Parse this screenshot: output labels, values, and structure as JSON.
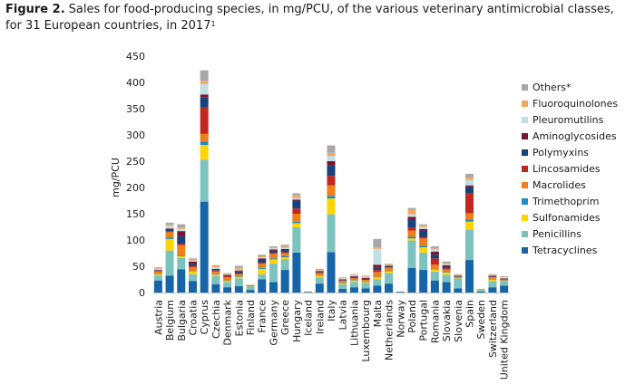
{
  "figure": {
    "number": "Figure 2.",
    "title_line1": "Sales for food-producing species, in mg/PCU, of the various veterinary antimicrobial classes,",
    "title_line2": "for 31 European countries, in 2017",
    "footnote_marker": "1"
  },
  "chart_data": {
    "type": "bar",
    "stacked": true,
    "ylabel": "mg/PCU",
    "xlabel": "",
    "ylim": [
      0,
      450
    ],
    "yticks": [
      0,
      50,
      100,
      150,
      200,
      250,
      300,
      350,
      400,
      450
    ],
    "grid": false,
    "legend_position": "right",
    "categories": [
      "Austria",
      "Belgium",
      "Bulgaria",
      "Croatia",
      "Cyprus",
      "Czechia",
      "Denmark",
      "Estonia",
      "Finland",
      "France",
      "Germany",
      "Greece",
      "Hungary",
      "Iceland",
      "Ireland",
      "Italy",
      "Latvia",
      "Lithuania",
      "Luxembourg",
      "Malta",
      "Netherlands",
      "Norway",
      "Poland",
      "Portugal",
      "Romania",
      "Slovakia",
      "Slovenia",
      "Spain",
      "Sweden",
      "Switzerland",
      "United Kingdom"
    ],
    "series": [
      {
        "name": "Tetracyclines",
        "color": "#1565a8",
        "values": [
          23,
          32,
          44,
          22,
          173,
          16,
          10,
          12,
          5,
          25,
          20,
          43,
          76,
          1,
          17,
          77,
          7,
          10,
          8,
          13,
          17,
          1,
          47,
          43,
          23,
          20,
          8,
          62,
          2,
          10,
          13
        ]
      },
      {
        "name": "Penicillins",
        "color": "#7cc3bf",
        "values": [
          10,
          48,
          22,
          13,
          80,
          15,
          10,
          15,
          7,
          10,
          35,
          20,
          48,
          1,
          12,
          72,
          9,
          10,
          10,
          12,
          20,
          1,
          52,
          33,
          17,
          14,
          18,
          58,
          3,
          12,
          8
        ]
      },
      {
        "name": "Sulfonamides",
        "color": "#ffd500",
        "values": [
          2,
          22,
          3,
          5,
          28,
          3,
          2,
          3,
          0,
          10,
          8,
          4,
          8,
          0,
          3,
          30,
          2,
          3,
          2,
          4,
          3,
          0,
          4,
          10,
          4,
          4,
          1,
          15,
          1,
          3,
          1
        ]
      },
      {
        "name": "Trimethoprim",
        "color": "#1a8fc2",
        "values": [
          1,
          3,
          1,
          1,
          6,
          1,
          1,
          1,
          0,
          2,
          2,
          2,
          3,
          0,
          1,
          5,
          1,
          1,
          1,
          1,
          1,
          0,
          3,
          3,
          1,
          1,
          1,
          4,
          0,
          1,
          1
        ]
      },
      {
        "name": "Macrolides",
        "color": "#ee7f1a",
        "values": [
          4,
          10,
          20,
          7,
          15,
          5,
          6,
          4,
          2,
          8,
          9,
          6,
          15,
          0,
          4,
          20,
          3,
          3,
          3,
          9,
          6,
          0,
          12,
          14,
          8,
          5,
          2,
          12,
          1,
          3,
          2
        ]
      },
      {
        "name": "Lincosamides",
        "color": "#c0271e",
        "values": [
          1,
          2,
          3,
          3,
          50,
          2,
          3,
          2,
          0,
          2,
          2,
          2,
          10,
          0,
          1,
          18,
          1,
          1,
          1,
          4,
          1,
          0,
          6,
          3,
          12,
          2,
          0,
          38,
          0,
          1,
          0
        ]
      },
      {
        "name": "Polymyxins",
        "color": "#17427a",
        "values": [
          1,
          3,
          14,
          4,
          20,
          1,
          1,
          3,
          0,
          6,
          4,
          4,
          15,
          0,
          1,
          20,
          1,
          2,
          1,
          4,
          2,
          0,
          14,
          12,
          7,
          3,
          1,
          12,
          0,
          1,
          1
        ]
      },
      {
        "name": "Aminoglycosides",
        "color": "#7a1632",
        "values": [
          1,
          2,
          10,
          4,
          5,
          2,
          1,
          2,
          0,
          2,
          2,
          2,
          2,
          0,
          2,
          8,
          1,
          1,
          2,
          6,
          1,
          0,
          6,
          3,
          6,
          3,
          1,
          3,
          0,
          1,
          1
        ]
      },
      {
        "name": "Pleuromutilins",
        "color": "#bfe0e6",
        "values": [
          2,
          5,
          4,
          2,
          20,
          3,
          1,
          2,
          0,
          2,
          2,
          2,
          3,
          0,
          1,
          10,
          2,
          2,
          2,
          30,
          1,
          0,
          5,
          4,
          4,
          2,
          1,
          10,
          0,
          1,
          2
        ]
      },
      {
        "name": "Fluoroquinolones",
        "color": "#f5a85c",
        "values": [
          1,
          2,
          3,
          2,
          6,
          2,
          1,
          3,
          1,
          2,
          2,
          3,
          5,
          0,
          2,
          6,
          1,
          1,
          1,
          3,
          2,
          0,
          8,
          3,
          2,
          2,
          1,
          5,
          0,
          1,
          1
        ]
      },
      {
        "name": "Others*",
        "color": "#a8a8a8",
        "values": [
          2,
          4,
          6,
          2,
          20,
          2,
          1,
          4,
          0,
          3,
          2,
          3,
          4,
          0,
          1,
          14,
          1,
          1,
          1,
          16,
          1,
          0,
          4,
          2,
          4,
          3,
          1,
          7,
          0,
          1,
          1
        ]
      }
    ]
  }
}
